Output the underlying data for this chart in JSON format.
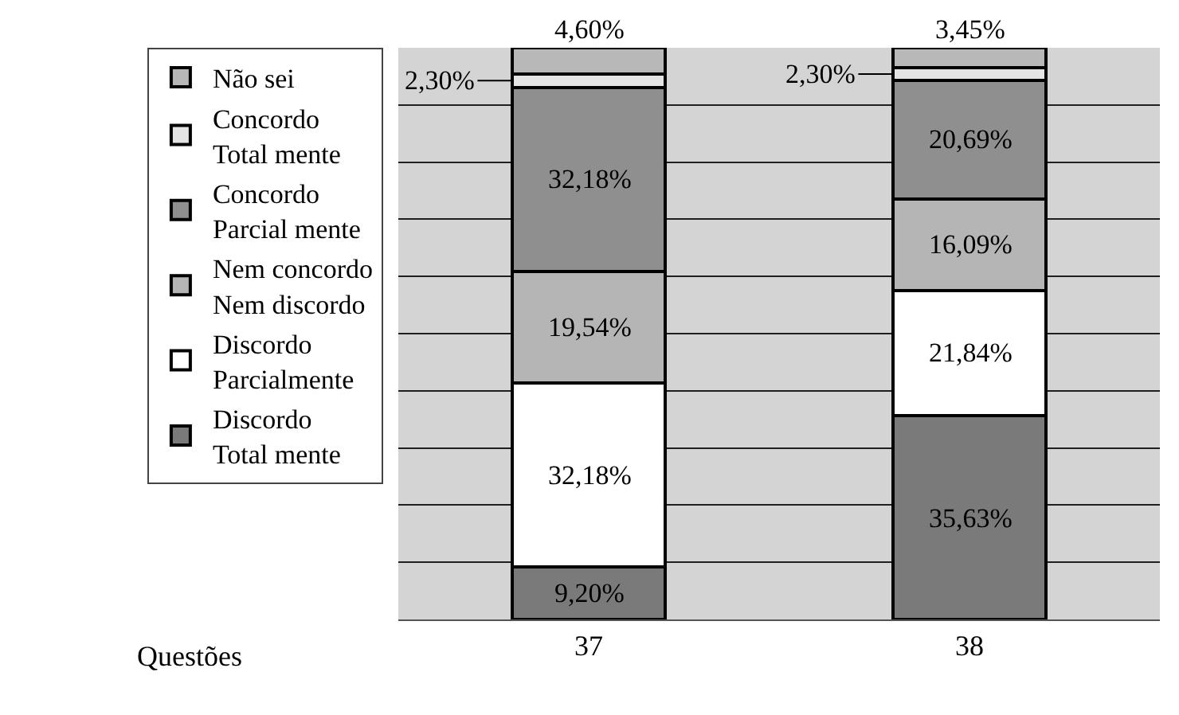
{
  "chart_data": {
    "type": "bar",
    "stacked": true,
    "annotations": [
      "Questões"
    ],
    "categories": [
      "37",
      "38"
    ],
    "series": [
      {
        "name": "Discordo Total mente",
        "color": "#7a7a7a",
        "values": [
          9.2,
          35.63
        ],
        "value_labels": [
          "9,20%",
          "35,63%"
        ]
      },
      {
        "name": "Discordo Parcialmente",
        "color": "#ffffff",
        "values": [
          32.18,
          21.84
        ],
        "value_labels": [
          "32,18%",
          "21,84%"
        ]
      },
      {
        "name": "Nem concordo Nem discordo",
        "color": "#b5b5b5",
        "values": [
          19.54,
          16.09
        ],
        "value_labels": [
          "19,54%",
          "16,09%"
        ]
      },
      {
        "name": "Concordo Parcial mente",
        "color": "#8f8f8f",
        "values": [
          32.18,
          20.69
        ],
        "value_labels": [
          "32,18%",
          "20,69%"
        ]
      },
      {
        "name": "Concordo Total mente",
        "color": "#e4e4e4",
        "values": [
          2.3,
          2.3
        ],
        "value_labels": [
          "2,30%",
          "2,30%"
        ]
      },
      {
        "name": "Não sei",
        "color": "#b8b8b8",
        "values": [
          4.6,
          3.45
        ],
        "value_labels": [
          "4,60%",
          "3,45%"
        ]
      }
    ],
    "ylim": [
      0,
      100
    ],
    "yticks": [
      {
        "value": 0,
        "label": null
      },
      {
        "value": 10,
        "label": null
      },
      {
        "value": 20,
        "label": null
      },
      {
        "value": 30,
        "label": null
      },
      {
        "value": 40,
        "label": null
      },
      {
        "value": 50,
        "label": null
      },
      {
        "value": 60,
        "label": null
      },
      {
        "value": 70,
        "label": null
      },
      {
        "value": 80,
        "label": null
      },
      {
        "value": 90,
        "label": null
      },
      {
        "value": 100,
        "label": null
      }
    ],
    "grid": "y",
    "legend": "left",
    "tick_labels": "x"
  }
}
